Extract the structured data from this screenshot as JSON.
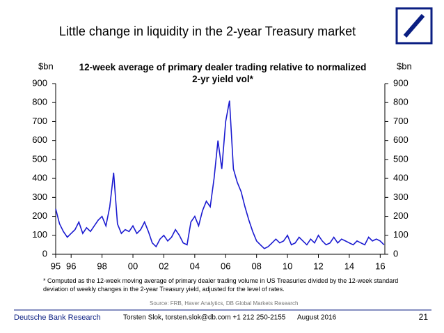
{
  "title": "Little change in liquidity in the 2-year Treasury market",
  "footer": {
    "left": "Deutsche Bank Research",
    "author": "Torsten Slok, torsten.slok@db.com +1 212 250-2155",
    "date": "August 2016",
    "page": "21"
  },
  "chart_data": {
    "type": "line",
    "title": "12-week average of primary dealer trading relative to normalized 2-yr yield vol*",
    "ylabel": "$bn",
    "y2label": "$bn",
    "footnote": "* Computed as the 12-week moving average of primary dealer trading volume in US Treasuries divided by the 12-week standard deviation of weekly changes in the 2-year Treasury yield, adjusted for the level of rates.",
    "source": "Source: FRB, Haver Analytics, DB Global Markets Research",
    "x": [
      1995,
      1995.25,
      1995.5,
      1995.75,
      1996,
      1996.25,
      1996.5,
      1996.75,
      1997,
      1997.25,
      1997.5,
      1997.75,
      1998,
      1998.25,
      1998.5,
      1998.75,
      1999,
      1999.25,
      1999.5,
      1999.75,
      2000,
      2000.25,
      2000.5,
      2000.75,
      2001,
      2001.25,
      2001.5,
      2001.75,
      2002,
      2002.25,
      2002.5,
      2002.75,
      2003,
      2003.25,
      2003.5,
      2003.75,
      2004,
      2004.25,
      2004.5,
      2004.75,
      2005,
      2005.25,
      2005.5,
      2005.75,
      2006,
      2006.25,
      2006.5,
      2006.75,
      2007,
      2007.25,
      2007.5,
      2007.75,
      2008,
      2008.25,
      2008.5,
      2008.75,
      2009,
      2009.25,
      2009.5,
      2009.75,
      2010,
      2010.25,
      2010.5,
      2010.75,
      2011,
      2011.25,
      2011.5,
      2011.75,
      2012,
      2012.25,
      2012.5,
      2012.75,
      2013,
      2013.25,
      2013.5,
      2013.75,
      2014,
      2014.25,
      2014.5,
      2014.75,
      2015,
      2015.25,
      2015.5,
      2015.75,
      2016,
      2016.25
    ],
    "series": [
      {
        "name": "12-week average",
        "color": "#1a1ad0",
        "values": [
          240,
          160,
          120,
          90,
          110,
          130,
          170,
          110,
          140,
          120,
          150,
          180,
          200,
          150,
          250,
          430,
          160,
          110,
          130,
          120,
          150,
          110,
          130,
          170,
          120,
          60,
          40,
          80,
          100,
          70,
          90,
          130,
          100,
          60,
          50,
          170,
          200,
          150,
          230,
          280,
          250,
          400,
          600,
          450,
          700,
          810,
          450,
          380,
          330,
          250,
          180,
          120,
          70,
          50,
          30,
          40,
          60,
          80,
          60,
          70,
          100,
          50,
          60,
          90,
          70,
          50,
          80,
          60,
          100,
          70,
          50,
          60,
          90,
          60,
          80,
          70,
          60,
          50,
          70,
          60,
          50,
          90,
          70,
          80,
          70,
          50
        ]
      }
    ],
    "xlim": [
      1995,
      2016.3
    ],
    "xticks": [
      {
        "value": 1995,
        "label": "95"
      },
      {
        "value": 1996,
        "label": "96"
      },
      {
        "value": 1998,
        "label": "98"
      },
      {
        "value": 2000,
        "label": "00"
      },
      {
        "value": 2002,
        "label": "02"
      },
      {
        "value": 2004,
        "label": "04"
      },
      {
        "value": 2006,
        "label": "06"
      },
      {
        "value": 2008,
        "label": "08"
      },
      {
        "value": 2010,
        "label": "10"
      },
      {
        "value": 2012,
        "label": "12"
      },
      {
        "value": 2014,
        "label": "14"
      },
      {
        "value": 2016,
        "label": "16"
      }
    ],
    "ylim": [
      0,
      900
    ],
    "yticks": [
      0,
      100,
      200,
      300,
      400,
      500,
      600,
      700,
      800,
      900
    ],
    "y2lim": [
      0,
      900
    ],
    "y2ticks": [
      0,
      100,
      200,
      300,
      400,
      500,
      600,
      700,
      800,
      900
    ],
    "grid": false
  }
}
